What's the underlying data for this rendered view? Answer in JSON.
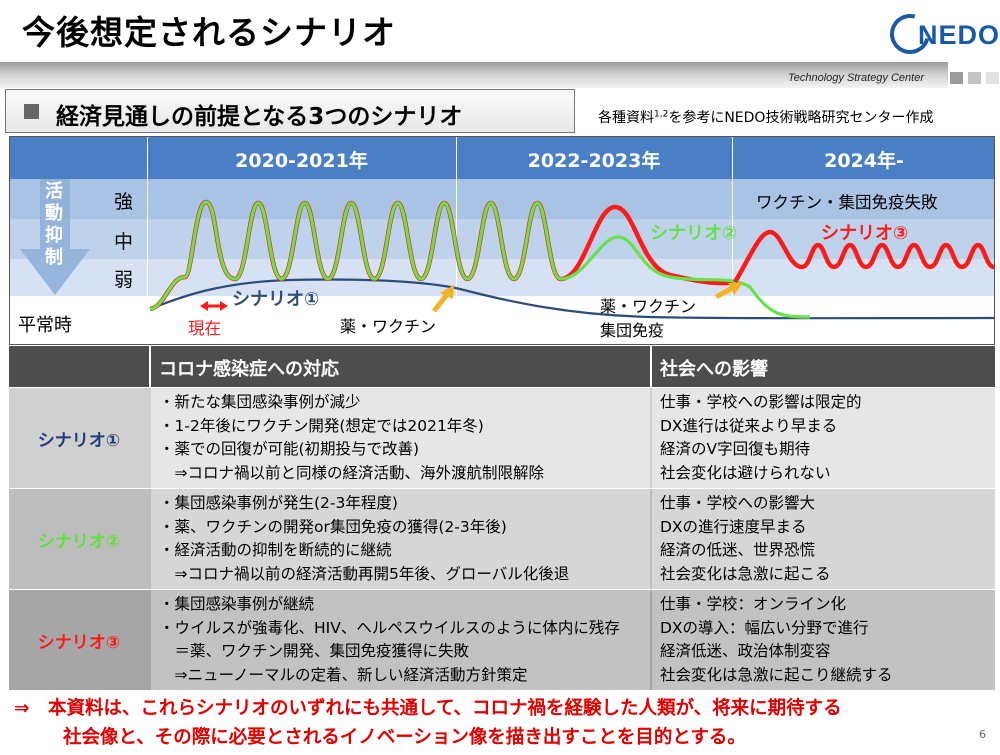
{
  "header": {
    "title": "今後想定されるシナリオ",
    "logo_text": "NEDO",
    "band_text": "Technology Strategy Center"
  },
  "subtitle": {
    "text": "経済見通しの前提となる3つのシナリオ",
    "source_prefix": "各種資料",
    "source_sup": "1,2",
    "source_suffix": "を参考にNEDO技術戦略研究センター作成"
  },
  "chart": {
    "periods": [
      "2020-2021年",
      "2022-2023年",
      "2024年-"
    ],
    "arrow_label": [
      "活",
      "動",
      "抑",
      "制"
    ],
    "levels": [
      "強",
      "中",
      "弱"
    ],
    "normal_label": "平常時",
    "annotations": {
      "vaccine_failure": "ワクチン・集団免疫失敗",
      "scenario1": "シナリオ①",
      "scenario2": "シナリオ②",
      "scenario3": "シナリオ③",
      "now": "現在",
      "drug_vaccine_1": "薬・ワクチン",
      "drug_vaccine_2": "薬・ワクチン",
      "herd_immunity": "集団免疫"
    },
    "colors": {
      "scenario1": "#2e4d7a",
      "scenario2": "#66e24a",
      "scenario3": "#ff1a1a",
      "header": "#4a7fc6"
    }
  },
  "table": {
    "headers": [
      "コロナ感染症への対応",
      "社会への影響"
    ],
    "rows": [
      {
        "label": "シナリオ①",
        "color": "#1f3d7a",
        "response": [
          "・新たな集団感染事例が減少",
          "・1-2年後にワクチン開発(想定では2021年冬)",
          "・薬での回復が可能(初期投与で改善)",
          "　⇒コロナ禍以前と同様の経済活動、海外渡航制限解除"
        ],
        "impact": [
          "仕事・学校への影響は限定的",
          "DX進行は従来より早まる",
          "経済のV字回復も期待",
          "社会変化は避けられない"
        ]
      },
      {
        "label": "シナリオ②",
        "color": "#5fe03c",
        "response": [
          "・集団感染事例が発生(2-3年程度)",
          "・薬、ワクチンの開発or集団免疫の獲得(2-3年後)",
          "・経済活動の抑制を断続的に継続",
          "　⇒コロナ禍以前の経済活動再開5年後、グローバル化後退"
        ],
        "impact": [
          "仕事・学校への影響大",
          "DXの進行速度早まる",
          "経済の低迷、世界恐慌",
          "社会変化は急激に起こる"
        ]
      },
      {
        "label": "シナリオ③",
        "color": "#ff1a1a",
        "response": [
          "・集団感染事例が継続",
          "・ウイルスが強毒化、HIV、ヘルペスウイルスのように体内に残存",
          "　＝薬、ワクチン開発、集団免疫獲得に失敗",
          "　⇒ニューノーマルの定着、新しい経済活動方針策定"
        ],
        "impact": [
          "仕事・学校：オンライン化",
          "DXの導入：幅広い分野で進行",
          "経済低迷、政治体制変容",
          "社会変化は急激に起こり継続する"
        ]
      }
    ]
  },
  "conclusion": [
    "⇒　本資料は、これらシナリオのいずれにも共通して、コロナ禍を経験した人類が、将来に期待する",
    "社会像と、その際に必要とされるイノベーション像を描き出すことを目的とする。"
  ],
  "page_number": "6"
}
